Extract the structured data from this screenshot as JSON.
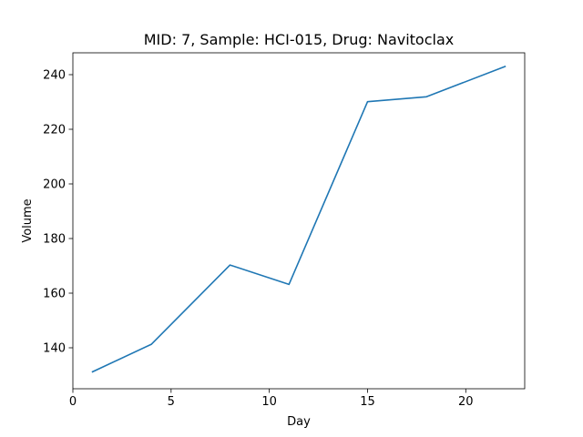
{
  "chart_data": {
    "type": "line",
    "title": "MID: 7, Sample: HCI-015, Drug: Navitoclax",
    "xlabel": "Day",
    "ylabel": "Volume",
    "xlim": [
      0,
      23
    ],
    "ylim": [
      125,
      248
    ],
    "xticks": [
      0,
      5,
      10,
      15,
      20
    ],
    "yticks": [
      140,
      160,
      180,
      200,
      220,
      240
    ],
    "grid": false,
    "series": [
      {
        "color": "#1f77b4",
        "x": [
          1,
          4,
          8,
          11,
          15,
          18,
          22
        ],
        "y": [
          131.2,
          141.3,
          170.3,
          163.2,
          230.1,
          231.9,
          243.0
        ]
      }
    ]
  }
}
